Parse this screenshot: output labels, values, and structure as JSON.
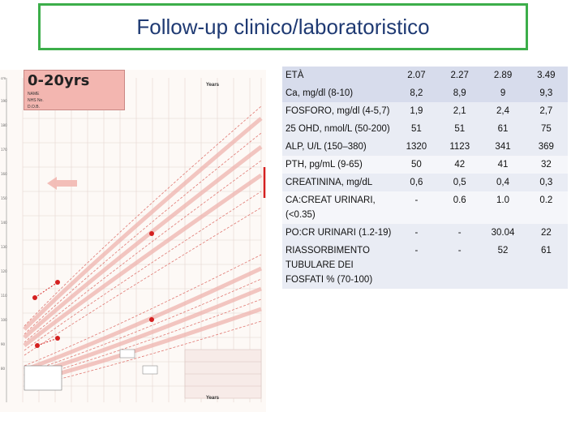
{
  "slide": {
    "title": "Follow-up clinico/laboratoristico"
  },
  "growth_chart": {
    "heading": "0-20yrs",
    "years_label": "Years",
    "header_lines": [
      "NAME",
      "NHS No.",
      "D.O.B."
    ]
  },
  "table": {
    "header_label": "ETÀ",
    "ages": [
      "2.07",
      "2.27",
      "2.89",
      "3.49"
    ],
    "rows": [
      {
        "label": "Ca, mg/dl (8-10)",
        "values": [
          "8,2",
          "8,9",
          "9",
          "9,3"
        ]
      },
      {
        "label": "FOSFORO, mg/dl (4-5,7)",
        "values": [
          "1,9",
          "2,1",
          "2,4",
          "2,7"
        ]
      },
      {
        "label": "25 OHD, nmol/L (50-200)",
        "values": [
          "51",
          "51",
          "61",
          "75"
        ]
      },
      {
        "label": "ALP, U/L (150–380)",
        "values": [
          "1320",
          "1123",
          "341",
          "369"
        ]
      },
      {
        "label": "PTH, pg/mL (9-65)",
        "values": [
          "50",
          "42",
          "41",
          "32"
        ]
      },
      {
        "label": "CREATININA, mg/dL",
        "values": [
          "0,6",
          "0,5",
          "0,4",
          "0,3"
        ]
      },
      {
        "label": "CA:CREAT URINARI, (<0.35)",
        "values": [
          "-",
          "0.6",
          "1.0",
          "0.2"
        ]
      },
      {
        "label": "PO:CR URINARI (1.2-19)",
        "values": [
          "-",
          "-",
          "30.04",
          "22"
        ]
      },
      {
        "label": "RIASSORBIMENTO TUBULARE DEI FOSFATI % (70-100)",
        "values": [
          "-",
          "-",
          "52",
          "61"
        ]
      }
    ]
  },
  "colors": {
    "title_border": "#3cae4a",
    "title_text": "#1f3a73",
    "header_row": "#d7dcec",
    "row_alt": "#e9ecf4",
    "marker": "#d42020"
  }
}
